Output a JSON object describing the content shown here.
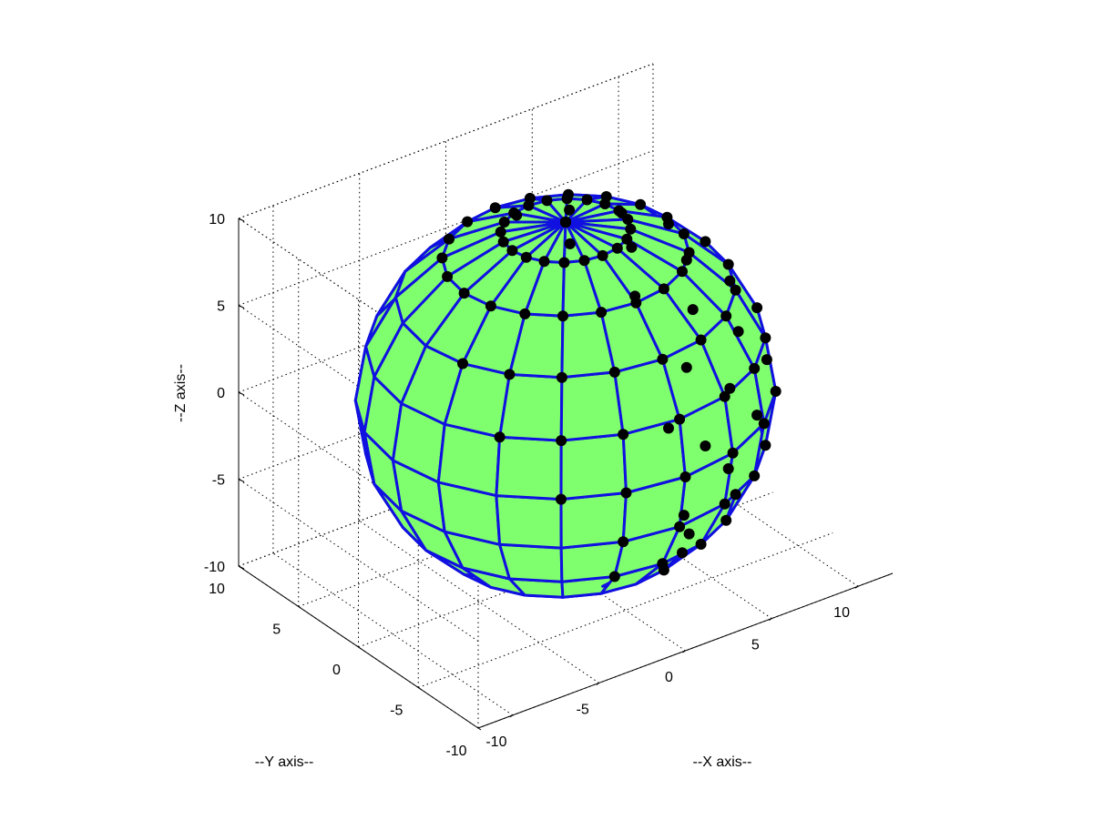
{
  "chart_data": {
    "type": "surface3d",
    "title": "",
    "xlabel": "--X axis--",
    "ylabel": "--Y axis--",
    "zlabel": "--Z axis--",
    "xlim": [
      -12,
      12
    ],
    "ylim": [
      -10,
      10
    ],
    "zlim": [
      -10,
      10
    ],
    "x_ticks": [
      "-10",
      "-5",
      "0",
      "5",
      "10"
    ],
    "y_ticks": [
      "-10",
      "-5",
      "0",
      "5",
      "10"
    ],
    "z_ticks": [
      "-10",
      "-5",
      "0",
      "5",
      "10"
    ],
    "grid": true,
    "view": "isometric 3-D",
    "surface": {
      "shape": "sphere",
      "center": [
        0,
        0,
        0
      ],
      "radius": 10,
      "meridians": 20,
      "parallels": 10,
      "face_color": "#80ff6e",
      "edge_color": "#1010e0",
      "marker_color": "#000000",
      "marker": "filled circle"
    }
  }
}
